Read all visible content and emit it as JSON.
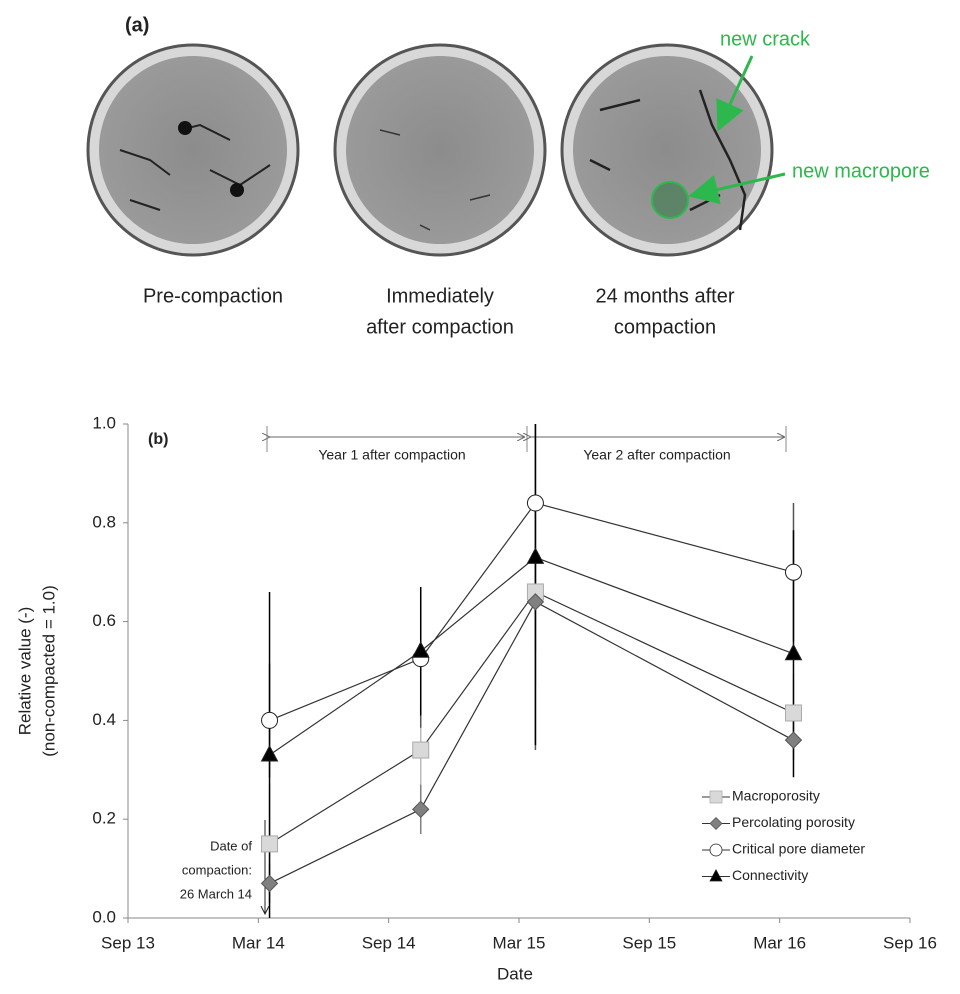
{
  "figure_a": {
    "panel_label": "(a)",
    "captions": [
      [
        "Pre-compaction"
      ],
      [
        "Immediately",
        "after compaction"
      ],
      [
        "24 months after",
        "compaction"
      ]
    ],
    "annotations": [
      "new crack",
      "new macropore"
    ]
  },
  "chart_data": {
    "type": "line",
    "panel_label": "(b)",
    "x_label": "Date",
    "y_label": [
      "Relative value (-)",
      "(non-compacted = 1.0)"
    ],
    "x": [
      2014.21,
      2014.79,
      2015.23,
      2016.22
    ],
    "xlim": [
      2013.667,
      2016.667
    ],
    "xticks": [
      {
        "value": 2013.667,
        "label": "Sep 13"
      },
      {
        "value": 2014.167,
        "label": "Mar 14"
      },
      {
        "value": 2014.667,
        "label": "Sep 14"
      },
      {
        "value": 2015.167,
        "label": "Mar 15"
      },
      {
        "value": 2015.667,
        "label": "Sep 15"
      },
      {
        "value": 2016.167,
        "label": "Mar 16"
      },
      {
        "value": 2016.667,
        "label": "Sep 16"
      }
    ],
    "ylim": [
      0,
      1
    ],
    "yticks": [
      {
        "value": 0,
        "label": "0.0"
      },
      0.2,
      0.4,
      0.6,
      0.8,
      {
        "value": 1,
        "label": "1.0"
      }
    ],
    "grid": false,
    "legend": "lower right",
    "series": [
      {
        "name": "Macroporosity",
        "marker": "square",
        "color": "#d9d9d9",
        "values": [
          0.15,
          0.34,
          0.66,
          0.415
        ],
        "errors": [
          0.12,
          0.1,
          0.19,
          0.08
        ]
      },
      {
        "name": "Percolating porosity",
        "marker": "diamond",
        "color": "#808080",
        "values": [
          0.07,
          0.22,
          0.64,
          0.36
        ],
        "errors": [
          0.04,
          0.05,
          0.1,
          0.04
        ]
      },
      {
        "name": "Critical pore diameter",
        "marker": "circle",
        "color": "#ffffff",
        "values": [
          0.4,
          0.525,
          0.84,
          0.7
        ],
        "errors": [
          0.115,
          0.14,
          0.5,
          0.14
        ]
      },
      {
        "name": "Connectivity",
        "marker": "triangle",
        "color": "#000000",
        "values": [
          0.33,
          0.54,
          0.73,
          0.535
        ],
        "errors": [
          0.33,
          0.13,
          0.38,
          0.25
        ]
      }
    ],
    "annotations": [
      "Year 1 after compaction",
      "Year 2 after compaction"
    ],
    "compaction_note": [
      "Date of",
      "compaction:",
      "26 March 14"
    ]
  }
}
